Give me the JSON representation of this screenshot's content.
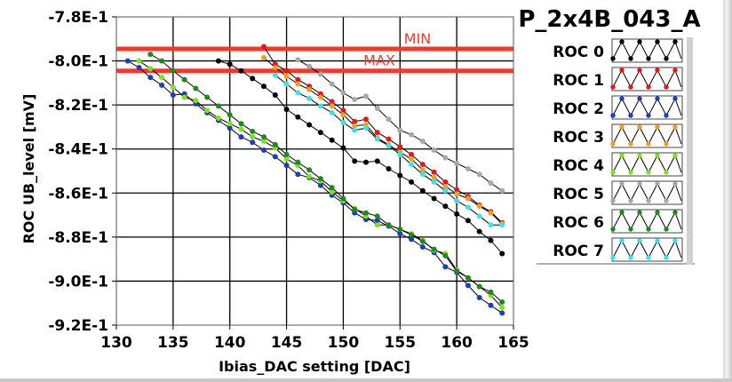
{
  "chart_data": {
    "type": "line",
    "title": "P_2x4B_043_A",
    "xlabel": "Ibias_DAC setting [DAC]",
    "ylabel": "ROC UB_level [mV]",
    "xlim": [
      130,
      165
    ],
    "ylim": [
      -0.92,
      -0.78
    ],
    "xticks": [
      130,
      135,
      140,
      145,
      150,
      155,
      160,
      165
    ],
    "yticks": [
      -0.78,
      -0.8,
      -0.82,
      -0.84,
      -0.86,
      -0.88,
      -0.9,
      -0.92
    ],
    "ytick_labels": [
      "-7.8E-1",
      "-8.0E-1",
      "-8.2E-1",
      "-8.4E-1",
      "-8.6E-1",
      "-8.8E-1",
      "-9.0E-1",
      "-9.2E-1"
    ],
    "xtick_labels": [
      "130",
      "135",
      "140",
      "145",
      "150",
      "155",
      "160",
      "165"
    ],
    "grid": true,
    "legend_position": "right",
    "limits": [
      {
        "name": "MIN",
        "value": -0.7945,
        "color": "#f03a2e"
      },
      {
        "name": "MAX",
        "value": -0.8045,
        "color": "#f03a2e"
      }
    ],
    "series": [
      {
        "name": "ROC 0",
        "color": "#000000",
        "x": [
          139,
          140,
          141,
          142,
          143,
          144,
          145,
          146,
          147,
          148,
          149,
          150,
          151,
          152,
          153,
          154,
          155,
          156,
          157,
          158,
          159,
          160,
          161,
          162,
          163,
          164
        ],
        "values": [
          -0.8,
          -0.8015,
          -0.8045,
          -0.808,
          -0.8115,
          -0.8155,
          -0.822,
          -0.8255,
          -0.829,
          -0.8325,
          -0.836,
          -0.8395,
          -0.8455,
          -0.846,
          -0.8455,
          -0.849,
          -0.852,
          -0.855,
          -0.859,
          -0.8625,
          -0.866,
          -0.8695,
          -0.8725,
          -0.8775,
          -0.8815,
          -0.8875
        ]
      },
      {
        "name": "ROC 1",
        "color": "#e8161a",
        "x": [
          143,
          144,
          145,
          146,
          147,
          148,
          149,
          150,
          151,
          152,
          153,
          154,
          155,
          156,
          157,
          158,
          159,
          160,
          161,
          162,
          163,
          164
        ],
        "values": [
          -0.7935,
          -0.8015,
          -0.8045,
          -0.8085,
          -0.8115,
          -0.815,
          -0.8185,
          -0.8225,
          -0.8275,
          -0.8265,
          -0.8325,
          -0.8355,
          -0.839,
          -0.8425,
          -0.847,
          -0.8505,
          -0.855,
          -0.8585,
          -0.8615,
          -0.8655,
          -0.8685,
          -0.8735
        ]
      },
      {
        "name": "ROC 2",
        "color": "#1a3fb8",
        "x": [
          131,
          132,
          133,
          134,
          135,
          136,
          137,
          138,
          139,
          140,
          141,
          142,
          143,
          144,
          145,
          146,
          147,
          148,
          149,
          150,
          151,
          152,
          153,
          154,
          155,
          156,
          157,
          158,
          159,
          160,
          161,
          162,
          163,
          164
        ],
        "values": [
          -0.8,
          -0.803,
          -0.8075,
          -0.811,
          -0.8155,
          -0.815,
          -0.8195,
          -0.8235,
          -0.827,
          -0.8305,
          -0.8345,
          -0.837,
          -0.8405,
          -0.8435,
          -0.8475,
          -0.8515,
          -0.853,
          -0.8565,
          -0.861,
          -0.8645,
          -0.869,
          -0.872,
          -0.8725,
          -0.875,
          -0.8785,
          -0.881,
          -0.8845,
          -0.887,
          -0.8935,
          -0.896,
          -0.902,
          -0.9075,
          -0.911,
          -0.9145
        ]
      },
      {
        "name": "ROC 3",
        "color": "#f0a020",
        "x": [
          143,
          144,
          145,
          146,
          147,
          148,
          149,
          150,
          151,
          152,
          153,
          154,
          155,
          156,
          157,
          158,
          159,
          160,
          161,
          162,
          163,
          164
        ],
        "values": [
          -0.7985,
          -0.803,
          -0.807,
          -0.8105,
          -0.813,
          -0.8165,
          -0.8205,
          -0.8245,
          -0.8295,
          -0.829,
          -0.835,
          -0.838,
          -0.8415,
          -0.8445,
          -0.8495,
          -0.853,
          -0.857,
          -0.8605,
          -0.8625,
          -0.866,
          -0.869,
          -0.874
        ]
      },
      {
        "name": "ROC 4",
        "color": "#7ee020",
        "x": [
          132,
          133,
          134,
          135,
          136,
          137,
          138,
          139,
          140,
          141,
          142,
          143,
          144,
          145,
          146,
          147,
          148,
          149,
          150,
          151,
          152,
          153,
          154,
          155,
          156,
          157,
          158,
          159,
          160,
          161,
          162,
          163,
          164
        ],
        "values": [
          -0.8,
          -0.8035,
          -0.8075,
          -0.812,
          -0.8165,
          -0.818,
          -0.8225,
          -0.826,
          -0.8285,
          -0.831,
          -0.8345,
          -0.8365,
          -0.8395,
          -0.8445,
          -0.8475,
          -0.8525,
          -0.8545,
          -0.8595,
          -0.8635,
          -0.867,
          -0.8705,
          -0.8745,
          -0.8745,
          -0.8765,
          -0.8785,
          -0.8815,
          -0.886,
          -0.8875,
          -0.895,
          -0.8985,
          -0.9025,
          -0.9065,
          -0.912
        ]
      },
      {
        "name": "ROC 5",
        "color": "#a8a8a8",
        "x": [
          146,
          147,
          148,
          149,
          150,
          151,
          152,
          153,
          154,
          155,
          156,
          157,
          158,
          159,
          160,
          161,
          162,
          163,
          164
        ],
        "values": [
          -0.7995,
          -0.8025,
          -0.806,
          -0.8105,
          -0.8145,
          -0.8175,
          -0.816,
          -0.8215,
          -0.8265,
          -0.8315,
          -0.8335,
          -0.8365,
          -0.8405,
          -0.844,
          -0.8465,
          -0.849,
          -0.8515,
          -0.8555,
          -0.859
        ]
      },
      {
        "name": "ROC 6",
        "color": "#1e8a1e",
        "x": [
          133,
          134,
          135,
          136,
          137,
          138,
          139,
          140,
          141,
          142,
          143,
          144,
          145,
          146,
          147,
          148,
          149,
          150,
          151,
          152,
          153,
          154,
          155,
          156,
          157,
          158,
          159,
          160,
          161,
          162,
          163,
          164
        ],
        "values": [
          -0.797,
          -0.8,
          -0.8045,
          -0.8085,
          -0.8125,
          -0.8165,
          -0.8205,
          -0.8245,
          -0.8285,
          -0.832,
          -0.8345,
          -0.838,
          -0.8425,
          -0.846,
          -0.8495,
          -0.8535,
          -0.8575,
          -0.8625,
          -0.8675,
          -0.869,
          -0.8705,
          -0.8745,
          -0.8765,
          -0.879,
          -0.882,
          -0.8855,
          -0.8885,
          -0.8955,
          -0.8985,
          -0.9025,
          -0.905,
          -0.9095
        ]
      },
      {
        "name": "ROC 7",
        "color": "#40e0e8",
        "x": [
          144,
          145,
          146,
          147,
          148,
          149,
          150,
          151,
          152,
          153,
          154,
          155,
          156,
          157,
          158,
          159,
          160,
          161,
          162,
          163,
          164
        ],
        "values": [
          -0.8065,
          -0.8105,
          -0.8145,
          -0.817,
          -0.8205,
          -0.8235,
          -0.828,
          -0.8315,
          -0.8305,
          -0.8355,
          -0.8385,
          -0.8425,
          -0.847,
          -0.8515,
          -0.855,
          -0.859,
          -0.8635,
          -0.8665,
          -0.8705,
          -0.8745,
          -0.8745
        ]
      }
    ]
  },
  "legend": {
    "items": [
      "ROC 0",
      "ROC 1",
      "ROC 2",
      "ROC 3",
      "ROC 4",
      "ROC 5",
      "ROC 6",
      "ROC 7"
    ]
  }
}
